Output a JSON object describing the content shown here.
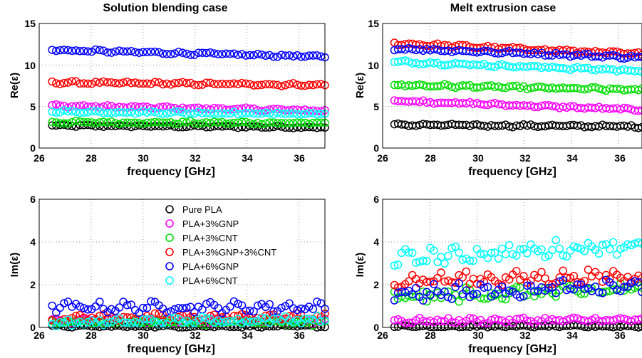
{
  "chart_data": [
    {
      "type": "scatter",
      "title": "Solution blending case",
      "xlabel": "frequency [GHz]",
      "ylabel": "Re(ε)",
      "xlim": [
        26,
        37
      ],
      "ylim": [
        0,
        15
      ],
      "xticks": [
        "26",
        "28",
        "30",
        "32",
        "34",
        "36"
      ],
      "yticks": [
        "0",
        "5",
        "10",
        "15"
      ],
      "grid": true,
      "x_range": [
        26.5,
        37.0
      ],
      "series": [
        {
          "name": "Pure PLA",
          "color": "#000000",
          "start": 2.7,
          "end": 2.5,
          "jitter": 0.12
        },
        {
          "name": "PLA+3%GNP",
          "color": "#ff00ff",
          "start": 5.1,
          "end": 4.5,
          "jitter": 0.15
        },
        {
          "name": "PLA+3%CNT",
          "color": "#00dd00",
          "start": 3.1,
          "end": 3.0,
          "jitter": 0.15
        },
        {
          "name": "PLA+3%GNP+3%CNT",
          "color": "#ff0000",
          "start": 7.9,
          "end": 7.6,
          "jitter": 0.15
        },
        {
          "name": "PLA+6%GNP",
          "color": "#0000ff",
          "start": 11.8,
          "end": 11.0,
          "jitter": 0.15
        },
        {
          "name": "PLA+6%CNT",
          "color": "#00ffff",
          "start": 4.4,
          "end": 4.1,
          "jitter": 0.15
        }
      ]
    },
    {
      "type": "scatter",
      "title": "Melt extrusion case",
      "xlabel": "frequency [GHz]",
      "ylabel": "Re(ε)",
      "xlim": [
        26,
        37
      ],
      "ylim": [
        0,
        15
      ],
      "xticks": [
        "26",
        "28",
        "30",
        "32",
        "34",
        "36"
      ],
      "yticks": [
        "0",
        "5",
        "10",
        "15"
      ],
      "grid": true,
      "x_range": [
        26.5,
        37.0
      ],
      "series": [
        {
          "name": "Pure PLA",
          "color": "#000000",
          "start": 2.8,
          "end": 2.6,
          "jitter": 0.15
        },
        {
          "name": "PLA+3%GNP",
          "color": "#ff00ff",
          "start": 5.7,
          "end": 4.6,
          "jitter": 0.15
        },
        {
          "name": "PLA+3%CNT",
          "color": "#00dd00",
          "start": 7.6,
          "end": 7.0,
          "jitter": 0.18
        },
        {
          "name": "PLA+3%GNP+3%CNT",
          "color": "#ff0000",
          "start": 12.6,
          "end": 11.3,
          "jitter": 0.18
        },
        {
          "name": "PLA+6%GNP",
          "color": "#0000ff",
          "start": 12.0,
          "end": 10.9,
          "jitter": 0.18
        },
        {
          "name": "PLA+6%CNT",
          "color": "#00ffff",
          "start": 10.4,
          "end": 9.3,
          "jitter": 0.18
        }
      ]
    },
    {
      "type": "scatter",
      "title": "",
      "xlabel": "frequency [GHz]",
      "ylabel": "Im(ε)",
      "xlim": [
        26,
        37
      ],
      "ylim": [
        0,
        6
      ],
      "xticks": [
        "26",
        "28",
        "30",
        "32",
        "34",
        "36"
      ],
      "yticks": [
        "0",
        "2",
        "4",
        "6"
      ],
      "grid": true,
      "legend": "top-right",
      "x_range": [
        26.5,
        37.0
      ],
      "series": [
        {
          "name": "Pure PLA",
          "color": "#000000",
          "start": 0.05,
          "end": 0.05,
          "jitter": 0.05
        },
        {
          "name": "PLA+3%GNP",
          "color": "#ff00ff",
          "start": 0.3,
          "end": 0.3,
          "jitter": 0.12
        },
        {
          "name": "PLA+3%CNT",
          "color": "#00dd00",
          "start": 0.25,
          "end": 0.25,
          "jitter": 0.12
        },
        {
          "name": "PLA+3%GNP+3%CNT",
          "color": "#ff0000",
          "start": 0.45,
          "end": 0.5,
          "jitter": 0.15
        },
        {
          "name": "PLA+6%GNP",
          "color": "#0000ff",
          "start": 0.95,
          "end": 0.95,
          "jitter": 0.22
        },
        {
          "name": "PLA+6%CNT",
          "color": "#00ffff",
          "start": 0.2,
          "end": 0.4,
          "jitter": 0.15
        }
      ]
    },
    {
      "type": "scatter",
      "title": "",
      "xlabel": "frequency [GHz]",
      "ylabel": "Im(ε)",
      "xlim": [
        26,
        37
      ],
      "ylim": [
        0,
        6
      ],
      "xticks": [
        "26",
        "28",
        "30",
        "32",
        "34",
        "36"
      ],
      "yticks": [
        "0",
        "2",
        "4",
        "6"
      ],
      "grid": true,
      "x_range": [
        26.5,
        37.0
      ],
      "series": [
        {
          "name": "Pure PLA",
          "color": "#000000",
          "start": 0.05,
          "end": 0.05,
          "jitter": 0.05
        },
        {
          "name": "PLA+3%GNP",
          "color": "#ff00ff",
          "start": 0.3,
          "end": 0.35,
          "jitter": 0.12
        },
        {
          "name": "PLA+3%CNT",
          "color": "#00dd00",
          "start": 1.4,
          "end": 1.8,
          "jitter": 0.3
        },
        {
          "name": "PLA+3%GNP+3%CNT",
          "color": "#ff0000",
          "start": 2.2,
          "end": 2.4,
          "jitter": 0.3
        },
        {
          "name": "PLA+6%GNP",
          "color": "#0000ff",
          "start": 1.6,
          "end": 1.9,
          "jitter": 0.35
        },
        {
          "name": "PLA+6%CNT",
          "color": "#00ffff",
          "start": 3.2,
          "end": 3.9,
          "jitter": 0.35
        }
      ]
    }
  ]
}
